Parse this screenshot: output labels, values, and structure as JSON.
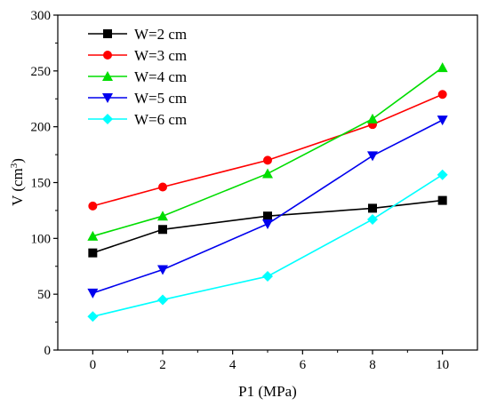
{
  "chart_data": {
    "type": "line",
    "x": [
      0,
      2,
      5,
      8,
      10
    ],
    "xlabel": "P1 (MPa)",
    "ylabel_main": "V (cm",
    "ylabel_sup": "3",
    "ylabel_close": ")",
    "xlim": [
      -1,
      11
    ],
    "ylim": [
      0,
      300
    ],
    "xticks": [
      0,
      2,
      4,
      6,
      8,
      10
    ],
    "yticks": [
      0,
      50,
      100,
      150,
      200,
      250,
      300
    ],
    "grid": false,
    "legend_position": "top-left",
    "series": [
      {
        "name": "W=2 cm",
        "color": "#000000",
        "marker": "square",
        "values": [
          87,
          108,
          120,
          127,
          134
        ]
      },
      {
        "name": "W=3 cm",
        "color": "#ff0000",
        "marker": "circle",
        "values": [
          129,
          146,
          170,
          202,
          229
        ]
      },
      {
        "name": "W=4 cm",
        "color": "#00dd00",
        "marker": "triangle-up",
        "values": [
          102,
          120,
          158,
          207,
          253
        ]
      },
      {
        "name": "W=5 cm",
        "color": "#0000ee",
        "marker": "triangle-down",
        "values": [
          51,
          72,
          113,
          174,
          206
        ]
      },
      {
        "name": "W=6 cm",
        "color": "#00ffff",
        "marker": "diamond",
        "values": [
          30,
          45,
          66,
          117,
          157
        ]
      }
    ]
  }
}
